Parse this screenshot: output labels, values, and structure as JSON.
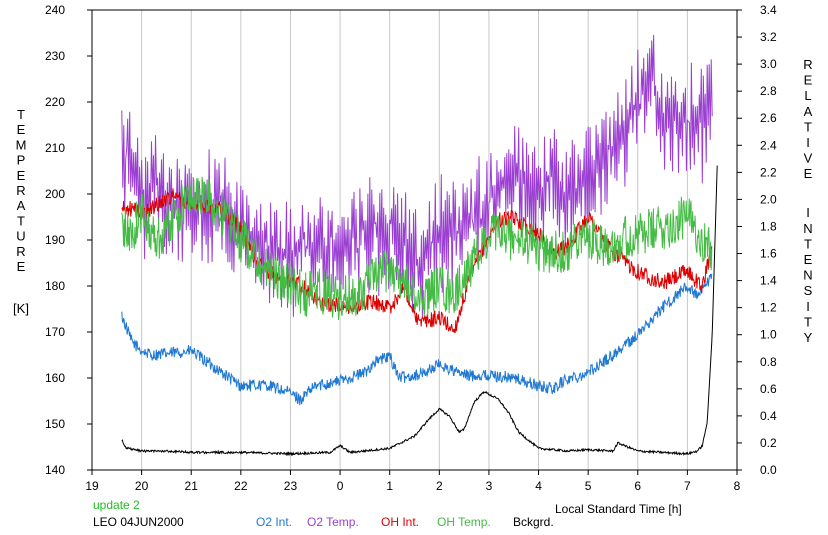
{
  "chart_data": {
    "type": "line",
    "title": "",
    "xlabel": "Local Standard Time [h]",
    "ylabel_left": "TEMPERATURE",
    "ylabel_left_unit": "[K]",
    "ylabel_right": "RELATIVE INTENSITY",
    "xlim": [
      19,
      32
    ],
    "ylim_left": [
      140,
      240
    ],
    "ylim_right": [
      0,
      3.4
    ],
    "x_tick_labels": [
      "19",
      "20",
      "21",
      "22",
      "23",
      "0",
      "1",
      "2",
      "3",
      "4",
      "5",
      "6",
      "7",
      "8"
    ],
    "y_left_tick_labels": [
      "140",
      "150",
      "160",
      "170",
      "180",
      "190",
      "200",
      "210",
      "220",
      "230",
      "240"
    ],
    "y_right_tick_labels": [
      "0.0",
      "0.2",
      "0.4",
      "0.6",
      "0.8",
      "1.0",
      "1.2",
      "1.4",
      "1.6",
      "1.8",
      "2.0",
      "2.2",
      "2.4",
      "2.6",
      "2.8",
      "3.0",
      "3.2",
      "3.4"
    ],
    "grid": "vertical",
    "update_label": "update 2",
    "site_label": "LEO 04JUN2000",
    "series": [
      {
        "name": "O2 Int.",
        "axis": "right",
        "color": "#1f78d2",
        "x": [
          19.6,
          19.8,
          20.0,
          20.2,
          20.5,
          21.0,
          21.5,
          22.0,
          22.5,
          23.0,
          23.2,
          23.5,
          24.0,
          24.5,
          24.7,
          25.0,
          25.2,
          25.5,
          25.7,
          26.0,
          26.3,
          26.5,
          27.0,
          27.5,
          28.0,
          28.3,
          28.5,
          29.0,
          29.5,
          30.0,
          30.5,
          31.0,
          31.2,
          31.5
        ],
        "values": [
          1.14,
          0.95,
          0.88,
          0.85,
          0.86,
          0.88,
          0.75,
          0.62,
          0.63,
          0.57,
          0.52,
          0.62,
          0.66,
          0.72,
          0.8,
          0.84,
          0.68,
          0.7,
          0.72,
          0.78,
          0.73,
          0.7,
          0.7,
          0.68,
          0.62,
          0.6,
          0.66,
          0.72,
          0.85,
          1.0,
          1.2,
          1.36,
          1.28,
          1.42
        ]
      },
      {
        "name": "O2 Temp.",
        "axis": "left",
        "color": "#9b3fd1",
        "x": [
          19.6,
          19.8,
          20.0,
          20.3,
          20.6,
          21.0,
          21.5,
          22.0,
          22.5,
          23.0,
          23.5,
          24.0,
          24.5,
          25.0,
          25.3,
          25.5,
          26.0,
          26.5,
          27.0,
          27.3,
          27.5,
          28.0,
          28.3,
          28.5,
          29.0,
          29.5,
          30.0,
          30.3,
          30.5,
          31.0,
          31.3,
          31.5
        ],
        "values": [
          211,
          205,
          198,
          202,
          198,
          196,
          199,
          193,
          188,
          186,
          190,
          188,
          191,
          192,
          190,
          184,
          191,
          193,
          198,
          204,
          205,
          200,
          204,
          199,
          205,
          209,
          220,
          226,
          215,
          215,
          216,
          218
        ]
      },
      {
        "name": "OH Int.",
        "axis": "right",
        "color": "#dd0000",
        "x": [
          19.6,
          19.8,
          20.0,
          20.3,
          20.6,
          21.0,
          21.3,
          21.6,
          22.0,
          22.3,
          22.6,
          23.0,
          23.3,
          23.6,
          24.0,
          24.3,
          24.6,
          25.0,
          25.3,
          25.6,
          26.0,
          26.3,
          26.6,
          26.9,
          27.2,
          27.5,
          28.0,
          28.3,
          28.6,
          29.0,
          29.5,
          30.0,
          30.5,
          31.0,
          31.3,
          31.5
        ],
        "values": [
          1.93,
          1.93,
          1.9,
          1.96,
          2.03,
          1.97,
          1.95,
          1.93,
          1.78,
          1.55,
          1.45,
          1.4,
          1.35,
          1.23,
          1.22,
          1.2,
          1.25,
          1.2,
          1.35,
          1.08,
          1.13,
          1.03,
          1.4,
          1.66,
          1.85,
          1.86,
          1.75,
          1.6,
          1.66,
          1.88,
          1.6,
          1.47,
          1.38,
          1.47,
          1.35,
          1.65
        ]
      },
      {
        "name": "OH Temp.",
        "axis": "left",
        "color": "#44bb44",
        "x": [
          19.6,
          19.8,
          20.0,
          20.3,
          20.6,
          21.0,
          21.3,
          21.6,
          22.0,
          22.3,
          22.6,
          23.0,
          23.3,
          23.6,
          24.0,
          24.3,
          24.6,
          25.0,
          25.3,
          25.6,
          26.0,
          26.3,
          26.6,
          27.0,
          27.3,
          27.6,
          28.0,
          28.3,
          28.6,
          29.0,
          29.3,
          29.6,
          30.0,
          30.3,
          30.6,
          31.0,
          31.2,
          31.5
        ],
        "values": [
          193,
          191,
          196,
          190,
          194,
          200,
          199,
          196,
          190,
          187,
          183,
          180,
          178,
          179,
          177,
          178,
          181,
          184,
          181,
          177,
          180,
          178,
          184,
          191,
          191,
          190,
          188,
          187,
          188,
          191,
          189,
          190,
          191,
          192,
          193,
          195,
          192,
          187
        ]
      },
      {
        "name": "Bckgrd.",
        "axis": "right",
        "color": "#000000",
        "x": [
          19.6,
          19.7,
          20.0,
          20.5,
          21.0,
          22.0,
          23.0,
          23.8,
          24.0,
          24.2,
          25.0,
          25.5,
          25.8,
          26.0,
          26.2,
          26.4,
          26.5,
          26.7,
          26.9,
          27.2,
          27.4,
          27.6,
          28.0,
          28.6,
          29.0,
          29.5,
          29.6,
          30.0,
          30.5,
          31.0,
          31.2,
          31.3,
          31.4,
          31.5,
          31.6
        ],
        "values": [
          0.22,
          0.16,
          0.14,
          0.14,
          0.13,
          0.13,
          0.12,
          0.13,
          0.18,
          0.13,
          0.16,
          0.25,
          0.38,
          0.45,
          0.4,
          0.28,
          0.3,
          0.5,
          0.58,
          0.52,
          0.42,
          0.28,
          0.16,
          0.14,
          0.15,
          0.14,
          0.2,
          0.14,
          0.13,
          0.12,
          0.14,
          0.18,
          0.35,
          1.0,
          2.25
        ]
      }
    ]
  }
}
